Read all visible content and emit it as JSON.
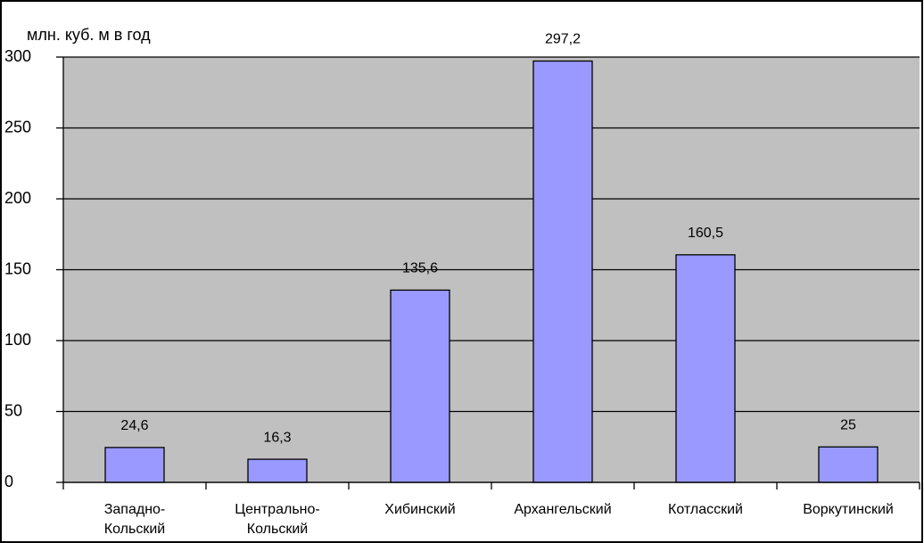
{
  "chart_data": {
    "type": "bar",
    "ylabel": "млн. куб. м в год",
    "categories": [
      "Западно-\nКольский",
      "Центрально-\nКольский",
      "Хибинский",
      "Архангельский",
      "Котласский",
      "Воркутинский"
    ],
    "values": [
      24.6,
      16.3,
      135.6,
      297.2,
      160.5,
      25
    ],
    "value_labels": [
      "24,6",
      "16,3",
      "135,6",
      "297,2",
      "160,5",
      "25"
    ],
    "color": "#9999ff",
    "ylim": [
      0,
      300
    ],
    "yticks": [
      0,
      50,
      100,
      150,
      200,
      250,
      300
    ],
    "grid": true
  }
}
